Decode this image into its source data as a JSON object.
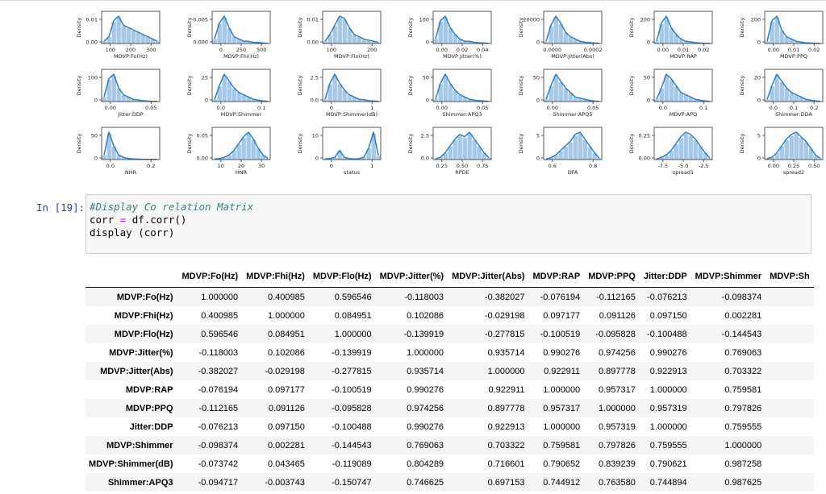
{
  "plots": [
    {
      "xlabel": "MDVP:Fo(Hz)",
      "ylabel": "Density",
      "yticks": [
        "0.01",
        "0.00"
      ],
      "xticks": [
        "100",
        "200",
        "300"
      ]
    },
    {
      "xlabel": "MDVP:Fhi(Hz)",
      "ylabel": "Density",
      "yticks": [
        "0.005",
        "0.000"
      ],
      "xticks": [
        "0",
        "250",
        "500"
      ]
    },
    {
      "xlabel": "MDVP:Flo(Hz)",
      "ylabel": "Density",
      "yticks": [
        "0.01",
        "0.00"
      ],
      "xticks": [
        "100",
        "200"
      ]
    },
    {
      "xlabel": "MDVP:Jitter(%)",
      "ylabel": "Density",
      "yticks": [
        "100",
        "0"
      ],
      "xticks": [
        "0.00",
        "0.02",
        "0.04"
      ]
    },
    {
      "xlabel": "MDVP:Jitter(Abs)",
      "ylabel": "Density",
      "yticks": [
        "20000",
        "0"
      ],
      "xticks": [
        "0.0000",
        "0.0002"
      ]
    },
    {
      "xlabel": "MDVP:RAP",
      "ylabel": "Density",
      "yticks": [
        "200",
        "0"
      ],
      "xticks": [
        "0.00",
        "0.01",
        "0.02"
      ]
    },
    {
      "xlabel": "MDVP:PPQ",
      "ylabel": "Density",
      "yticks": [
        "200",
        "0"
      ],
      "xticks": [
        "0.00",
        "0.01",
        "0.02"
      ]
    },
    {
      "xlabel": "Jitter:DDP",
      "ylabel": "Density",
      "yticks": [
        "100",
        "0"
      ],
      "xticks": [
        "0.00",
        "0.05"
      ]
    },
    {
      "xlabel": "MDVP:Shimmer",
      "ylabel": "Density",
      "yticks": [
        "25",
        "0"
      ],
      "xticks": [
        "0.0",
        "0.1"
      ]
    },
    {
      "xlabel": "MDVP:Shimmer(dB)",
      "ylabel": "Density",
      "yticks": [
        "2.5",
        "0.0"
      ],
      "xticks": [
        "0",
        "1"
      ]
    },
    {
      "xlabel": "Shimmer:APQ3",
      "ylabel": "Density",
      "yticks": [
        "50",
        "0"
      ],
      "xticks": [
        "0.00",
        "0.05"
      ]
    },
    {
      "xlabel": "Shimmer:APQ5",
      "ylabel": "Density",
      "yticks": [
        "50",
        "0"
      ],
      "xticks": [
        "0.00",
        "0.05"
      ]
    },
    {
      "xlabel": "MDVP:APQ",
      "ylabel": "Density",
      "yticks": [
        "50",
        "0"
      ],
      "xticks": [
        "0.0",
        "0.1"
      ]
    },
    {
      "xlabel": "Shimmer:DDA",
      "ylabel": "Density",
      "yticks": [
        "20",
        "0"
      ],
      "xticks": [
        "0.0",
        "0.1",
        "0.2"
      ]
    },
    {
      "xlabel": "NHR",
      "ylabel": "Density",
      "yticks": [
        "50",
        "0"
      ],
      "xticks": [
        "0.0",
        "0.2"
      ]
    },
    {
      "xlabel": "HNR",
      "ylabel": "Density",
      "yticks": [
        "0.05",
        "0.00"
      ],
      "xticks": [
        "10",
        "20",
        "30"
      ]
    },
    {
      "xlabel": "status",
      "ylabel": "Density",
      "yticks": [
        "10",
        "0"
      ],
      "xticks": [
        "0",
        "1"
      ]
    },
    {
      "xlabel": "RPDE",
      "ylabel": "Density",
      "yticks": [
        "2.5",
        "0.0"
      ],
      "xticks": [
        "0.25",
        "0.50",
        "0.75"
      ]
    },
    {
      "xlabel": "DFA",
      "ylabel": "Density",
      "yticks": [
        "5",
        "0"
      ],
      "xticks": [
        "0.6",
        "0.8"
      ]
    },
    {
      "xlabel": "spread1",
      "ylabel": "Density",
      "yticks": [
        "0.25",
        "0.00"
      ],
      "xticks": [
        "-7.5",
        "-5.0",
        "-2.5"
      ]
    },
    {
      "xlabel": "spread2",
      "ylabel": "Density",
      "yticks": [
        "5",
        "0"
      ],
      "xticks": [
        "0.00",
        "0.25",
        "0.50"
      ]
    }
  ],
  "cell": {
    "prompt": "In [19]:",
    "line1": "#Display Co relation Matrix",
    "line2a": "corr ",
    "line2op": "=",
    "line2b": " df.corr()",
    "line3": "display (corr)"
  },
  "table": {
    "columns": [
      "MDVP:Fo(Hz)",
      "MDVP:Fhi(Hz)",
      "MDVP:Flo(Hz)",
      "MDVP:Jitter(%)",
      "MDVP:Jitter(Abs)",
      "MDVP:RAP",
      "MDVP:PPQ",
      "Jitter:DDP",
      "MDVP:Shimmer",
      "MDVP:Sh"
    ],
    "rows": [
      {
        "label": "MDVP:Fo(Hz)",
        "values": [
          "1.000000",
          "0.400985",
          "0.596546",
          "-0.118003",
          "-0.382027",
          "-0.076194",
          "-0.112165",
          "-0.076213",
          "-0.098374",
          ""
        ]
      },
      {
        "label": "MDVP:Fhi(Hz)",
        "values": [
          "0.400985",
          "1.000000",
          "0.084951",
          "0.102086",
          "-0.029198",
          "0.097177",
          "0.091126",
          "0.097150",
          "0.002281",
          ""
        ]
      },
      {
        "label": "MDVP:Flo(Hz)",
        "values": [
          "0.596546",
          "0.084951",
          "1.000000",
          "-0.139919",
          "-0.277815",
          "-0.100519",
          "-0.095828",
          "-0.100488",
          "-0.144543",
          ""
        ]
      },
      {
        "label": "MDVP:Jitter(%)",
        "values": [
          "-0.118003",
          "0.102086",
          "-0.139919",
          "1.000000",
          "0.935714",
          "0.990276",
          "0.974256",
          "0.990276",
          "0.769063",
          ""
        ]
      },
      {
        "label": "MDVP:Jitter(Abs)",
        "values": [
          "-0.382027",
          "-0.029198",
          "-0.277815",
          "0.935714",
          "1.000000",
          "0.922911",
          "0.897778",
          "0.922913",
          "0.703322",
          ""
        ]
      },
      {
        "label": "MDVP:RAP",
        "values": [
          "-0.076194",
          "0.097177",
          "-0.100519",
          "0.990276",
          "0.922911",
          "1.000000",
          "0.957317",
          "1.000000",
          "0.759581",
          ""
        ]
      },
      {
        "label": "MDVP:PPQ",
        "values": [
          "-0.112165",
          "0.091126",
          "-0.095828",
          "0.974256",
          "0.897778",
          "0.957317",
          "1.000000",
          "0.957319",
          "0.797826",
          ""
        ]
      },
      {
        "label": "Jitter:DDP",
        "values": [
          "-0.076213",
          "0.097150",
          "-0.100488",
          "0.990276",
          "0.922913",
          "1.000000",
          "0.957319",
          "1.000000",
          "0.759555",
          ""
        ]
      },
      {
        "label": "MDVP:Shimmer",
        "values": [
          "-0.098374",
          "0.002281",
          "-0.144543",
          "0.769063",
          "0.703322",
          "0.759581",
          "0.797826",
          "0.759555",
          "1.000000",
          ""
        ]
      },
      {
        "label": "MDVP:Shimmer(dB)",
        "values": [
          "-0.073742",
          "0.043465",
          "-0.119089",
          "0.804289",
          "0.716601",
          "0.790652",
          "0.839239",
          "0.790621",
          "0.987258",
          ""
        ]
      },
      {
        "label": "Shimmer:APQ3",
        "values": [
          "-0.094717",
          "-0.003743",
          "-0.150747",
          "0.746625",
          "0.697153",
          "0.744912",
          "0.763580",
          "0.744894",
          "0.987625",
          ""
        ]
      }
    ]
  },
  "colors": {
    "kde": "#2e7fbf",
    "bar": "#a6c8e6",
    "prompt": "#303f9f",
    "comment": "#408080"
  }
}
